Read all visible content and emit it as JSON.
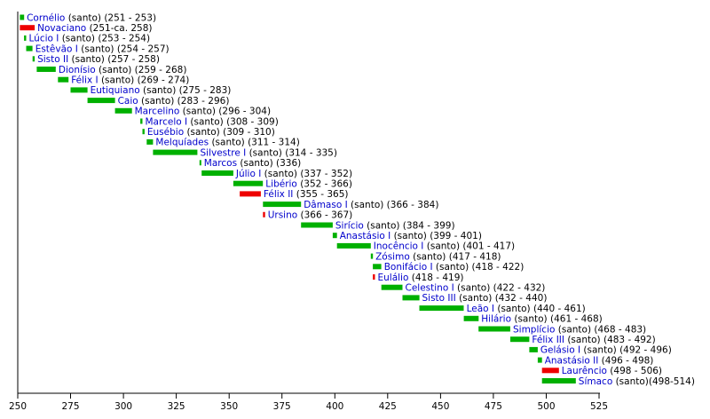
{
  "chart_data": {
    "type": "bar",
    "orientation": "horizontal-timeline",
    "xlim": [
      250,
      525
    ],
    "xticks": [
      250,
      275,
      300,
      325,
      350,
      375,
      400,
      425,
      450,
      475,
      500,
      525
    ],
    "grid": false,
    "legend": "none",
    "colors": {
      "pope": "#00b000",
      "antipope": "#ee0000",
      "name": "#0000cc",
      "text": "#000000"
    },
    "items": [
      {
        "name": "Cornélio",
        "note": "(santo) (251 - 253)",
        "start": 251,
        "end": 253,
        "kind": "pope"
      },
      {
        "name": "Novaciano",
        "note": "(251-ca. 258)",
        "start": 251,
        "end": 258,
        "kind": "antipope"
      },
      {
        "name": "Lúcio I",
        "note": "(santo) (253 - 254)",
        "start": 253,
        "end": 254,
        "kind": "pope"
      },
      {
        "name": "Estêvão I",
        "note": "(santo) (254 - 257)",
        "start": 254,
        "end": 257,
        "kind": "pope"
      },
      {
        "name": "Sisto II",
        "note": "(santo) (257 - 258)",
        "start": 257,
        "end": 258,
        "kind": "pope"
      },
      {
        "name": "Dionísio",
        "note": "(santo) (259 - 268)",
        "start": 259,
        "end": 268,
        "kind": "pope"
      },
      {
        "name": "Félix I",
        "note": "(santo) (269 - 274)",
        "start": 269,
        "end": 274,
        "kind": "pope"
      },
      {
        "name": "Eutiquiano",
        "note": "(santo) (275 - 283)",
        "start": 275,
        "end": 283,
        "kind": "pope"
      },
      {
        "name": "Caio",
        "note": "(santo) (283 - 296)",
        "start": 283,
        "end": 296,
        "kind": "pope"
      },
      {
        "name": "Marcelino",
        "note": "(santo) (296 - 304)",
        "start": 296,
        "end": 304,
        "kind": "pope"
      },
      {
        "name": "Marcelo I",
        "note": "(santo) (308 - 309)",
        "start": 308,
        "end": 309,
        "kind": "pope"
      },
      {
        "name": "Eusébio",
        "note": "(santo) (309 - 310)",
        "start": 309,
        "end": 310,
        "kind": "pope"
      },
      {
        "name": "Melquíades",
        "note": "(santo) (311 - 314)",
        "start": 311,
        "end": 314,
        "kind": "pope"
      },
      {
        "name": "Silvestre I",
        "note": "(santo) (314 - 335)",
        "start": 314,
        "end": 335,
        "kind": "pope"
      },
      {
        "name": "Marcos",
        "note": "(santo) (336)",
        "start": 336,
        "end": 336.4,
        "kind": "pope"
      },
      {
        "name": "Júlio I",
        "note": "(santo) (337 - 352)",
        "start": 337,
        "end": 352,
        "kind": "pope"
      },
      {
        "name": "Libério",
        "note": "(352 - 366)",
        "start": 352,
        "end": 366,
        "kind": "pope"
      },
      {
        "name": "Félix II",
        "note": "(355 - 365)",
        "start": 355,
        "end": 365,
        "kind": "antipope"
      },
      {
        "name": "Dâmaso I",
        "note": "(santo) (366 - 384)",
        "start": 366,
        "end": 384,
        "kind": "pope"
      },
      {
        "name": "Ursino",
        "note": "(366 - 367)",
        "start": 366,
        "end": 367,
        "kind": "antipope"
      },
      {
        "name": "Sirício",
        "note": "(santo) (384 - 399)",
        "start": 384,
        "end": 399,
        "kind": "pope"
      },
      {
        "name": "Anastásio I",
        "note": "(santo) (399 - 401)",
        "start": 399,
        "end": 401,
        "kind": "pope"
      },
      {
        "name": "Inocêncio I",
        "note": "(santo) (401 - 417)",
        "start": 401,
        "end": 417,
        "kind": "pope"
      },
      {
        "name": "Zósimo",
        "note": "(santo) (417 - 418)",
        "start": 417,
        "end": 418,
        "kind": "pope"
      },
      {
        "name": "Bonifácio I",
        "note": "(santo) (418 - 422)",
        "start": 418,
        "end": 422,
        "kind": "pope"
      },
      {
        "name": "Eulálio",
        "note": "(418 - 419)",
        "start": 418,
        "end": 419,
        "kind": "antipope"
      },
      {
        "name": "Celestino I",
        "note": "(santo) (422 - 432)",
        "start": 422,
        "end": 432,
        "kind": "pope"
      },
      {
        "name": "Sisto III",
        "note": "(santo) (432 - 440)",
        "start": 432,
        "end": 440,
        "kind": "pope"
      },
      {
        "name": "Leão I",
        "note": "(santo) (440 - 461)",
        "start": 440,
        "end": 461,
        "kind": "pope"
      },
      {
        "name": "Hilário",
        "note": "(santo) (461 - 468)",
        "start": 461,
        "end": 468,
        "kind": "pope"
      },
      {
        "name": "Simplício",
        "note": "(santo) (468 - 483)",
        "start": 468,
        "end": 483,
        "kind": "pope"
      },
      {
        "name": "Félix III",
        "note": "(santo) (483 - 492)",
        "start": 483,
        "end": 492,
        "kind": "pope"
      },
      {
        "name": "Gelásio I",
        "note": "(santo) (492 - 496)",
        "start": 492,
        "end": 496,
        "kind": "pope"
      },
      {
        "name": "Anastásio II",
        "note": "(496 - 498)",
        "start": 496,
        "end": 498,
        "kind": "pope"
      },
      {
        "name": "Laurêncio",
        "note": "(498 - 506)",
        "start": 498,
        "end": 506,
        "kind": "antipope"
      },
      {
        "name": "Símaco",
        "note": "(santo)(498-514)",
        "start": 498,
        "end": 514,
        "kind": "pope"
      }
    ]
  }
}
